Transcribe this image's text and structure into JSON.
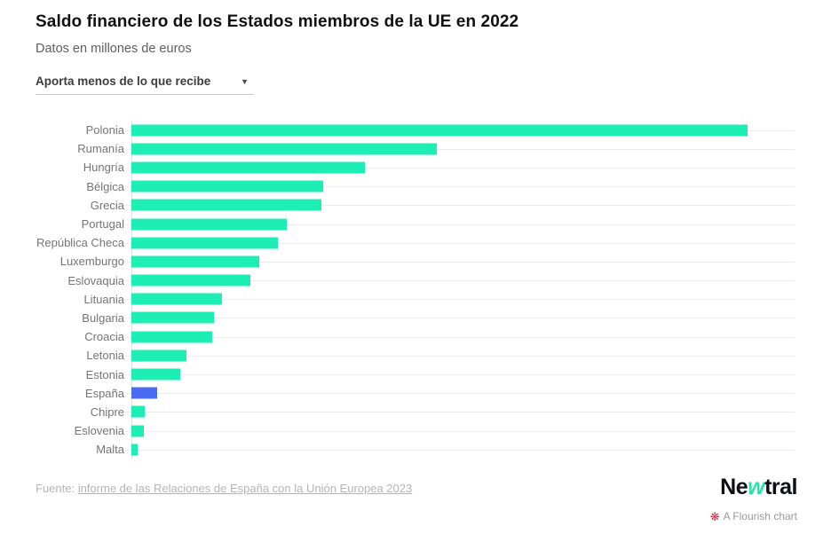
{
  "header": {
    "title": "Saldo financiero de los Estados miembros de la UE en 2022",
    "subtitle": "Datos en millones de euros"
  },
  "filter": {
    "selected_option": "Aporta menos de lo que recibe",
    "caret": "▼"
  },
  "chart_data": {
    "type": "bar",
    "orientation": "horizontal",
    "title": "Saldo financiero de los Estados miembros de la UE en 2022",
    "subtitle": "Datos en millones de euros",
    "unit": "millones de euros",
    "categories": [
      "Polonia",
      "Rumanía",
      "Hungría",
      "Bélgica",
      "Grecia",
      "Portugal",
      "República Checa",
      "Luxemburgo",
      "Eslovaquia",
      "Lituania",
      "Bulgaria",
      "Croacia",
      "Letonia",
      "Estonia",
      "España",
      "Chipre",
      "Eslovenia",
      "Malta"
    ],
    "values": [
      11900,
      5900,
      4500,
      3700,
      3670,
      3000,
      2830,
      2470,
      2300,
      1750,
      1600,
      1560,
      1070,
      945,
      500,
      260,
      240,
      120
    ],
    "xlim": [
      0,
      12800
    ],
    "grid": true,
    "value_labels": false,
    "highlight_category": "España",
    "bar_color": "#1deeb4",
    "highlight_color": "#4a6cf3",
    "gridline_color": "#ececec",
    "label_color": "#757575"
  },
  "footer": {
    "source_prefix": "Fuente: ",
    "source_link": "informe de las Relaciones de España con la Unión Europea 2023",
    "brand": {
      "part1": "Ne",
      "part2": "w",
      "part3": "tral"
    },
    "flourish_badge": "A Flourish chart",
    "flourish_icon": "❋"
  }
}
